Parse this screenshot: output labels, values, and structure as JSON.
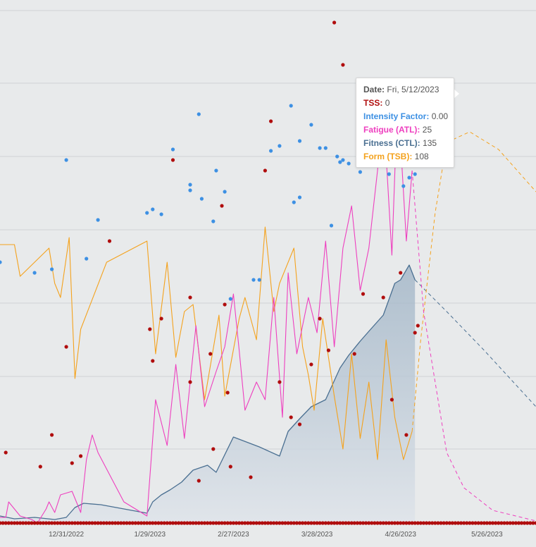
{
  "chart_data": {
    "type": "line",
    "x_tick_labels": [
      "12/31/2022",
      "1/29/2023",
      "2/27/2023",
      "3/28/2023",
      "4/26/2023",
      "5/26/2023"
    ],
    "xlim": [
      "2022-12-08",
      "2023-06-12"
    ],
    "grid": true,
    "colors": {
      "tss": "#b00d0d",
      "intensity_factor": "#3d90e3",
      "fatigue": "#ee3fbf",
      "fitness": "#4a6f91",
      "form": "#f4a21d",
      "tooltip_marker": "#f4b847"
    },
    "series": [
      {
        "key": "fitness",
        "role": "fitness (CTL)",
        "style": "area",
        "values": [
          [
            "2022-12-08",
            10
          ],
          [
            "2022-12-13",
            6
          ],
          [
            "2022-12-20",
            8
          ],
          [
            "2022-12-27",
            5
          ],
          [
            "2022-12-31",
            8
          ],
          [
            "2023-01-03",
            22
          ],
          [
            "2023-01-06",
            28
          ],
          [
            "2023-01-12",
            26
          ],
          [
            "2023-01-28",
            14
          ],
          [
            "2023-01-30",
            30
          ],
          [
            "2023-02-02",
            40
          ],
          [
            "2023-02-05",
            47
          ],
          [
            "2023-02-09",
            58
          ],
          [
            "2023-02-13",
            75
          ],
          [
            "2023-02-18",
            82
          ],
          [
            "2023-02-21",
            72
          ],
          [
            "2023-02-27",
            122
          ],
          [
            "2023-03-08",
            108
          ],
          [
            "2023-03-15",
            95
          ],
          [
            "2023-03-18",
            130
          ],
          [
            "2023-03-22",
            148
          ],
          [
            "2023-03-26",
            165
          ],
          [
            "2023-03-31",
            175
          ],
          [
            "2023-04-05",
            220
          ],
          [
            "2023-04-08",
            238
          ],
          [
            "2023-04-12",
            258
          ],
          [
            "2023-04-15",
            272
          ],
          [
            "2023-04-20",
            295
          ],
          [
            "2023-04-24",
            340
          ],
          [
            "2023-04-26",
            345
          ],
          [
            "2023-04-29",
            366
          ],
          [
            "2023-05-01",
            345
          ]
        ]
      },
      {
        "key": "fitness_projection",
        "role": "fitness (CTL) projection",
        "style": "dashed",
        "values": [
          [
            "2023-05-01",
            345
          ],
          [
            "2023-05-12",
            300
          ],
          [
            "2023-05-25",
            245
          ],
          [
            "2023-06-12",
            165
          ]
        ]
      },
      {
        "key": "form",
        "role": "form (TSB)",
        "style": "line",
        "values": [
          [
            "2022-12-08",
            395
          ],
          [
            "2022-12-13",
            395
          ],
          [
            "2022-12-15",
            350
          ],
          [
            "2022-12-20",
            370
          ],
          [
            "2022-12-25",
            390
          ],
          [
            "2022-12-27",
            340
          ],
          [
            "2022-12-29",
            320
          ],
          [
            "2023-01-01",
            405
          ],
          [
            "2023-01-03",
            205
          ],
          [
            "2023-01-05",
            275
          ],
          [
            "2023-01-14",
            370
          ],
          [
            "2023-01-28",
            400
          ],
          [
            "2023-01-31",
            240
          ],
          [
            "2023-02-04",
            370
          ],
          [
            "2023-02-07",
            235
          ],
          [
            "2023-02-10",
            300
          ],
          [
            "2023-02-13",
            310
          ],
          [
            "2023-02-17",
            175
          ],
          [
            "2023-02-22",
            295
          ],
          [
            "2023-02-24",
            180
          ],
          [
            "2023-03-01",
            290
          ],
          [
            "2023-03-03",
            320
          ],
          [
            "2023-03-07",
            260
          ],
          [
            "2023-03-10",
            420
          ],
          [
            "2023-03-13",
            300
          ],
          [
            "2023-03-15",
            340
          ],
          [
            "2023-03-20",
            390
          ],
          [
            "2023-03-23",
            250
          ],
          [
            "2023-03-25",
            210
          ],
          [
            "2023-03-27",
            160
          ],
          [
            "2023-03-30",
            290
          ],
          [
            "2023-04-03",
            180
          ],
          [
            "2023-04-06",
            105
          ],
          [
            "2023-04-09",
            240
          ],
          [
            "2023-04-12",
            120
          ],
          [
            "2023-04-15",
            200
          ],
          [
            "2023-04-18",
            90
          ],
          [
            "2023-04-21",
            260
          ],
          [
            "2023-04-24",
            150
          ],
          [
            "2023-04-27",
            90
          ],
          [
            "2023-04-30",
            130
          ]
        ]
      },
      {
        "key": "form_projection",
        "role": "form (TSB) projection",
        "style": "dashed",
        "values": [
          [
            "2023-04-30",
            130
          ],
          [
            "2023-05-03",
            260
          ],
          [
            "2023-05-08",
            440
          ],
          [
            "2023-05-12",
            540
          ],
          [
            "2023-05-20",
            555
          ],
          [
            "2023-05-30",
            530
          ],
          [
            "2023-06-12",
            470
          ]
        ]
      },
      {
        "key": "fatigue",
        "role": "fatigue (ATL)",
        "style": "line",
        "values": [
          [
            "2022-12-08",
            8
          ],
          [
            "2022-12-10",
            8
          ],
          [
            "2022-12-11",
            30
          ],
          [
            "2022-12-15",
            10
          ],
          [
            "2022-12-19",
            5
          ],
          [
            "2022-12-21",
            0
          ],
          [
            "2022-12-24",
            20
          ],
          [
            "2022-12-25",
            30
          ],
          [
            "2022-12-27",
            15
          ],
          [
            "2022-12-29",
            40
          ],
          [
            "2023-01-02",
            45
          ],
          [
            "2023-01-05",
            15
          ],
          [
            "2023-01-07",
            90
          ],
          [
            "2023-01-09",
            125
          ],
          [
            "2023-01-11",
            100
          ],
          [
            "2023-01-20",
            30
          ],
          [
            "2023-01-28",
            10
          ],
          [
            "2023-01-31",
            175
          ],
          [
            "2023-02-04",
            110
          ],
          [
            "2023-02-07",
            225
          ],
          [
            "2023-02-10",
            120
          ],
          [
            "2023-02-14",
            280
          ],
          [
            "2023-02-17",
            165
          ],
          [
            "2023-02-21",
            215
          ],
          [
            "2023-02-24",
            250
          ],
          [
            "2023-02-27",
            325
          ],
          [
            "2023-03-01",
            245
          ],
          [
            "2023-03-03",
            160
          ],
          [
            "2023-03-07",
            200
          ],
          [
            "2023-03-10",
            175
          ],
          [
            "2023-03-13",
            320
          ],
          [
            "2023-03-16",
            150
          ],
          [
            "2023-03-18",
            355
          ],
          [
            "2023-03-21",
            240
          ],
          [
            "2023-03-25",
            320
          ],
          [
            "2023-03-28",
            270
          ],
          [
            "2023-03-31",
            400
          ],
          [
            "2023-04-03",
            250
          ],
          [
            "2023-04-06",
            390
          ],
          [
            "2023-04-09",
            450
          ],
          [
            "2023-04-12",
            330
          ],
          [
            "2023-04-15",
            390
          ],
          [
            "2023-04-18",
            500
          ],
          [
            "2023-04-20",
            590
          ],
          [
            "2023-04-23",
            380
          ],
          [
            "2023-04-25",
            610
          ],
          [
            "2023-04-28",
            400
          ],
          [
            "2023-04-30",
            500
          ]
        ]
      },
      {
        "key": "fatigue_projection",
        "role": "fatigue (ATL) projection",
        "style": "dashed",
        "values": [
          [
            "2023-04-30",
            500
          ],
          [
            "2023-05-04",
            300
          ],
          [
            "2023-05-12",
            100
          ],
          [
            "2023-05-18",
            50
          ],
          [
            "2023-05-28",
            18
          ],
          [
            "2023-06-12",
            3
          ]
        ]
      }
    ],
    "tss_points": [
      [
        "2022-12-10",
        100
      ],
      [
        "2022-12-22",
        80
      ],
      [
        "2022-12-26",
        125
      ],
      [
        "2022-12-31",
        250
      ],
      [
        "2023-01-02",
        85
      ],
      [
        "2023-01-05",
        95
      ],
      [
        "2023-01-15",
        400
      ],
      [
        "2023-01-29",
        275
      ],
      [
        "2023-01-30",
        230
      ],
      [
        "2023-02-02",
        290
      ],
      [
        "2023-02-06",
        515
      ],
      [
        "2023-02-12",
        320
      ],
      [
        "2023-02-12",
        200
      ],
      [
        "2023-02-15",
        60
      ],
      [
        "2023-02-19",
        240
      ],
      [
        "2023-02-20",
        105
      ],
      [
        "2023-02-23",
        450
      ],
      [
        "2023-02-24",
        310
      ],
      [
        "2023-02-25",
        185
      ],
      [
        "2023-02-26",
        80
      ],
      [
        "2023-03-05",
        65
      ],
      [
        "2023-03-10",
        500
      ],
      [
        "2023-03-12",
        570
      ],
      [
        "2023-03-15",
        200
      ],
      [
        "2023-03-19",
        150
      ],
      [
        "2023-03-22",
        140
      ],
      [
        "2023-03-26",
        225
      ],
      [
        "2023-03-29",
        290
      ],
      [
        "2023-04-01",
        245
      ],
      [
        "2023-04-03",
        710
      ],
      [
        "2023-04-06",
        650
      ],
      [
        "2023-04-10",
        240
      ],
      [
        "2023-04-13",
        325
      ],
      [
        "2023-04-20",
        320
      ],
      [
        "2023-04-23",
        175
      ],
      [
        "2023-04-26",
        355
      ],
      [
        "2023-04-28",
        125
      ],
      [
        "2023-05-01",
        270
      ],
      [
        "2023-05-02",
        280
      ]
    ],
    "if_points": [
      [
        "2022-12-08",
        370
      ],
      [
        "2022-12-20",
        355
      ],
      [
        "2022-12-26",
        360
      ],
      [
        "2022-12-31",
        515
      ],
      [
        "2023-01-07",
        375
      ],
      [
        "2023-01-11",
        430
      ],
      [
        "2023-01-28",
        440
      ],
      [
        "2023-01-30",
        445
      ],
      [
        "2023-02-02",
        438
      ],
      [
        "2023-02-06",
        530
      ],
      [
        "2023-02-12",
        480
      ],
      [
        "2023-02-12",
        472
      ],
      [
        "2023-02-15",
        580
      ],
      [
        "2023-02-16",
        460
      ],
      [
        "2023-02-20",
        428
      ],
      [
        "2023-02-21",
        500
      ],
      [
        "2023-02-24",
        470
      ],
      [
        "2023-02-26",
        318
      ],
      [
        "2023-03-06",
        345
      ],
      [
        "2023-03-08",
        345
      ],
      [
        "2023-03-12",
        528
      ],
      [
        "2023-03-15",
        535
      ],
      [
        "2023-03-19",
        592
      ],
      [
        "2023-03-20",
        455
      ],
      [
        "2023-03-22",
        542
      ],
      [
        "2023-03-22",
        462
      ],
      [
        "2023-03-26",
        565
      ],
      [
        "2023-03-29",
        532
      ],
      [
        "2023-03-31",
        532
      ],
      [
        "2023-04-02",
        422
      ],
      [
        "2023-04-04",
        520
      ],
      [
        "2023-04-05",
        512
      ],
      [
        "2023-04-06",
        515
      ],
      [
        "2023-04-08",
        510
      ],
      [
        "2023-04-12",
        498
      ],
      [
        "2023-04-15",
        530
      ],
      [
        "2023-04-17",
        532
      ],
      [
        "2023-04-20",
        525
      ],
      [
        "2023-04-22",
        495
      ],
      [
        "2023-04-27",
        478
      ],
      [
        "2023-04-29",
        490
      ],
      [
        "2023-05-01",
        495
      ]
    ]
  },
  "tooltip": {
    "date_label": "Date:",
    "date_value": "Fri, 5/12/2023",
    "tss_label": "TSS:",
    "tss_value": "0",
    "if_label": "Intensity Factor:",
    "if_value": "0.00",
    "atl_label": "Fatigue (ATL):",
    "atl_value": "25",
    "ctl_label": "Fitness (CTL):",
    "ctl_value": "135",
    "tsb_label": "Form (TSB):",
    "tsb_value": "108"
  }
}
